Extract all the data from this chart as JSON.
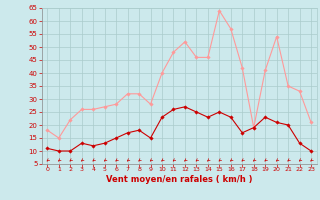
{
  "hours": [
    0,
    1,
    2,
    3,
    4,
    5,
    6,
    7,
    8,
    9,
    10,
    11,
    12,
    13,
    14,
    15,
    16,
    17,
    18,
    19,
    20,
    21,
    22,
    23
  ],
  "wind_avg": [
    11,
    10,
    10,
    13,
    12,
    13,
    15,
    17,
    18,
    15,
    23,
    26,
    27,
    25,
    23,
    25,
    23,
    17,
    19,
    23,
    21,
    20,
    13,
    10
  ],
  "wind_gust": [
    18,
    15,
    22,
    26,
    26,
    27,
    28,
    32,
    32,
    28,
    40,
    48,
    52,
    46,
    46,
    64,
    57,
    42,
    19,
    41,
    54,
    35,
    33,
    21
  ],
  "bg_color": "#cce9ec",
  "grid_color": "#aacccc",
  "line_avg_color": "#cc0000",
  "line_gust_color": "#ff9999",
  "arrow_color": "#cc0000",
  "xlabel": "Vent moyen/en rafales ( km/h )",
  "xlabel_color": "#cc0000",
  "tick_color": "#cc0000",
  "ylim": [
    5,
    65
  ],
  "yticks": [
    5,
    10,
    15,
    20,
    25,
    30,
    35,
    40,
    45,
    50,
    55,
    60,
    65
  ]
}
